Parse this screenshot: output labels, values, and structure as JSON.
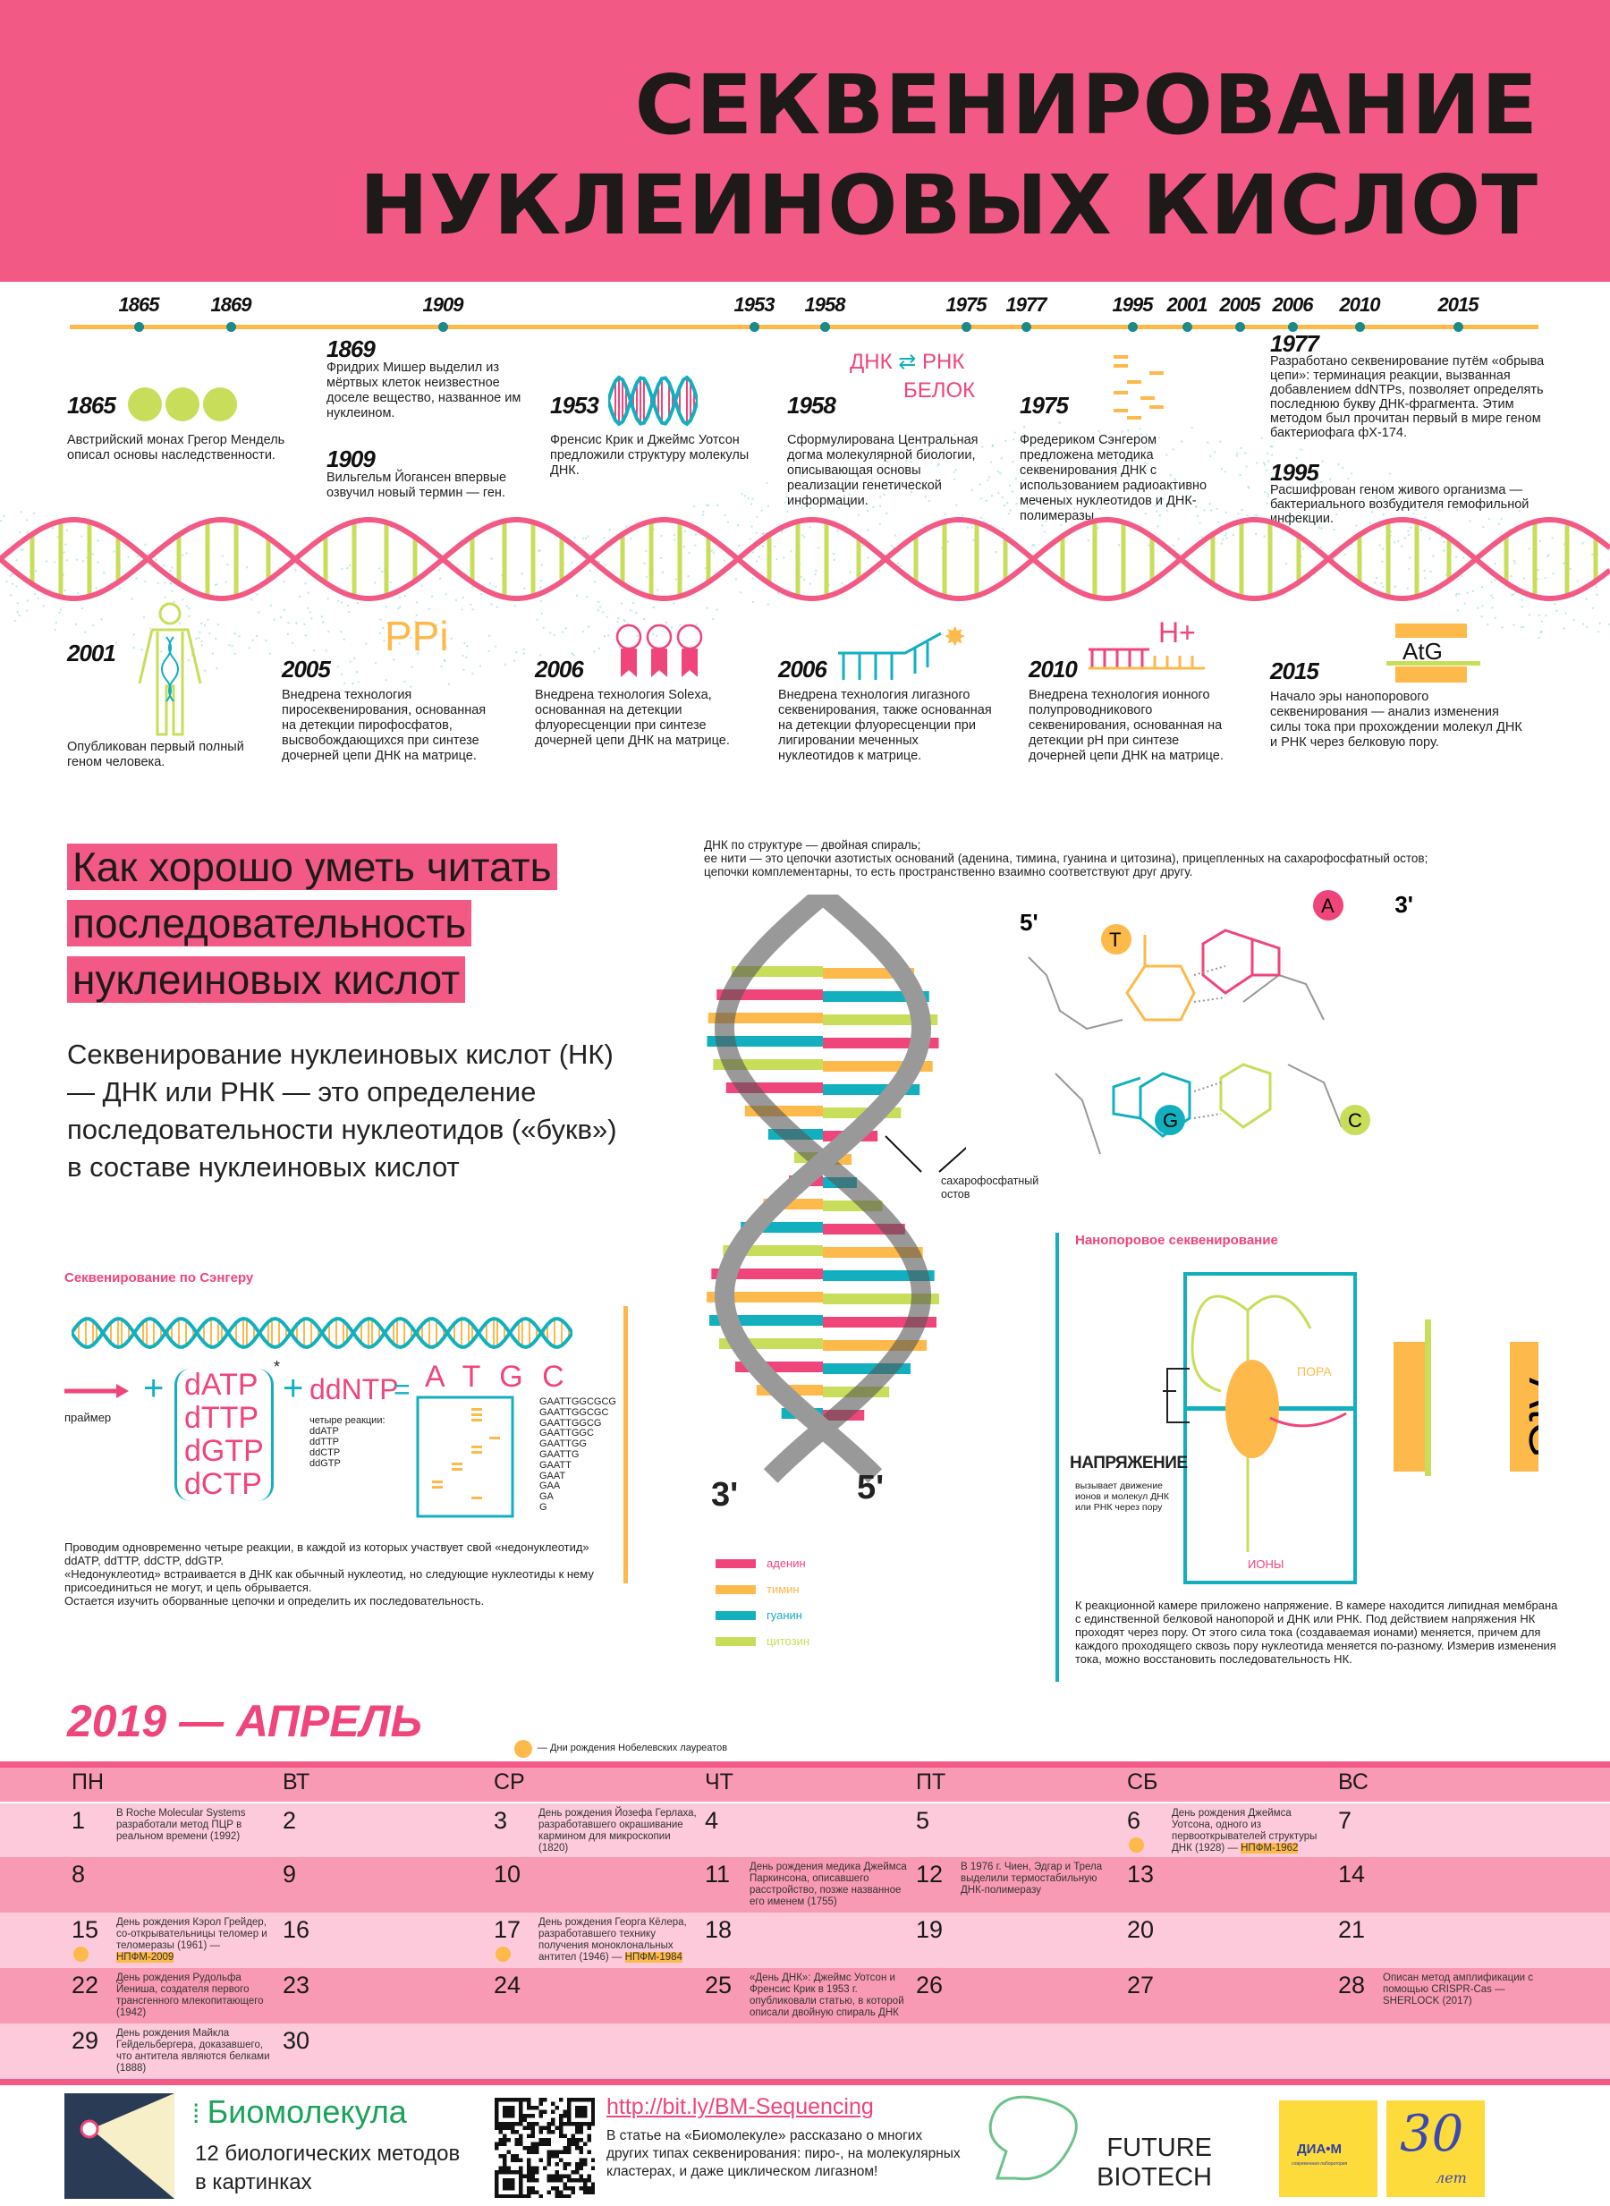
{
  "header": {
    "title_line1": "СЕКВЕНИРОВАНИЕ",
    "title_line2": "НУКЛЕИНОВЫХ КИСЛОТ",
    "bg": "#f25a85"
  },
  "timeline": {
    "years": [
      "1865",
      "1869",
      "1909",
      "1953",
      "1958",
      "1975",
      "1977",
      "1995",
      "2001",
      "2005",
      "2006",
      "2010",
      "2015"
    ],
    "events_top": [
      {
        "year": "1865",
        "text": "Австрийский монах Грегор Мендель описал основы наследственности."
      },
      {
        "year": "1869",
        "text": "Фридрих Мишер выделил из мёртвых клеток неизвестное доселе вещество, названное им нуклеином."
      },
      {
        "year": "1909",
        "text": "Вильгельм Йогансен впервые озвучил новый термин — ген."
      },
      {
        "year": "1953",
        "text": "Френсис Крик и Джеймс Уотсон предложили структуру молекулы ДНК."
      },
      {
        "year": "1958",
        "text": "Сформулирована Центральная догма молекулярной биологии, описывающая основы реализации генетической информации."
      },
      {
        "year": "1975",
        "text": "Фредериком Сэнгером предложена методика секвенирования ДНК с использованием радиоактивно меченых нуклеотидов и ДНК-полимеразы."
      },
      {
        "year": "1977",
        "text": "Разработано секвенирование путём «обрыва цепи»: терминация реакции, вызванная добавлением ddNTPs, позволяет определять последнюю букву ДНК-фрагмента. Этим методом был прочитан первый в мире геном бактериофага фX-174."
      },
      {
        "year": "1995",
        "text": "Расшифрован геном живого организма — бактериального возбудителя гемофильной инфекции."
      }
    ],
    "events_bottom": [
      {
        "year": "2001",
        "text": "Опубликован первый полный геном человека."
      },
      {
        "year": "2005",
        "text": "Внедрена технология пиросеквенирования, основанная на детекции пирофосфатов, высвобождающихся при синтезе дочерней цепи ДНК на матрице."
      },
      {
        "year": "2006",
        "text": "Внедрена технология Solexa, основанная на детекции флуоресценции при синтезе дочерней цепи ДНК на матрице."
      },
      {
        "year": "2006",
        "text": "Внедрена технология лигазного секвенирования, также основанная на детекции флуоресценции при лигировании меченных нуклеотидов к матрице."
      },
      {
        "year": "2010",
        "text": "Внедрена технология ионного полупроводникового секвенирования, основанная на детекции pH при синтезе дочерней цепи ДНК на матрице."
      },
      {
        "year": "2015",
        "text": "Начало эры нанопорового секвенирования — анализ изменения силы тока при прохождении молекул ДНК и РНК через белковую пору."
      }
    ],
    "dogma": {
      "dna": "ДНК",
      "rna": "РНК",
      "protein": "БЕЛОК"
    },
    "ppi": "PPi",
    "hplus": "H+",
    "atg": "AtG"
  },
  "section": {
    "heading": "Как хорошо уметь читать последовательность нуклеиновых кислот",
    "intro": "Секвенирование нуклеиновых кислот (НК) — ДНК или РНК — это определение последовательности нуклеотидов («букв») в составе нуклеиновых кислот"
  },
  "structure": {
    "desc": [
      "ДНК по структуре — двойная спираль;",
      "ее нити — это цепочки азотистых оснований (аденина, тимина, гуанина и цитозина), прицепленных на сахарофосфатный остов;",
      "цепочки комплементарны, то есть пространственно взаимно соответствуют друг другу."
    ],
    "backbone_label": "сахарофосфатный остов",
    "end3": "3'",
    "end5": "5'",
    "bases": [
      "T",
      "A",
      "G",
      "C"
    ],
    "legend": [
      {
        "label": "аденин",
        "color": "#f0457a"
      },
      {
        "label": "тимин",
        "color": "#fdb94a"
      },
      {
        "label": "гуанин",
        "color": "#12b0bf"
      },
      {
        "label": "цитозин",
        "color": "#c8de5a"
      }
    ]
  },
  "sanger": {
    "title": "Секвенирование по Сэнгеру",
    "primer": "праймер",
    "dntps": [
      "dATP",
      "dTTP",
      "dGTP",
      "dCTP"
    ],
    "star": "*",
    "ddntp": "ddNTP",
    "four_label": "четыре реакции:",
    "ddlist": [
      "ddATP",
      "ddTTP",
      "ddCTP",
      "ddGTP"
    ],
    "gel_header": "A T G C",
    "fragments": [
      "GAATTGGCGCG",
      "GAATTGGCGC",
      "GAATTGGCG",
      "GAATTGGC",
      "GAATTGG",
      "GAATTG",
      "GAATT",
      "GAAT",
      "GAA",
      "GA",
      "G"
    ],
    "text": [
      "Проводим одновременно четыре реакции, в каждой из которых участвует свой «недонуклеотид» ddATP, ddTTP, ddCTP, ddGTP.",
      "«Недонуклеотид» встраивается в ДНК как обычный нуклеотид, но следующие нуклеотиды к нему присоединиться не могут, и цепь обрывается.",
      "Остается изучить оборванные цепочки и определить их последовательность."
    ]
  },
  "nanopore": {
    "title": "Нанопоровое секвенирование",
    "voltage": "НАПРЯЖЕНИЕ",
    "voltage_desc": "вызывает движение ионов и молекул ДНК или РНК через пору",
    "pore": "ПОРА",
    "ions": "ИОНЫ",
    "atg": "AtG",
    "text": "К реакционной камере приложено напряжение. В камере находится липидная мембрана с единственной белковой нанопорой и ДНК или РНК. Под действием напряжения НК проходят через пору. От этого сила тока (создаваемая ионами) меняется, причем для каждого проходящего сквозь пору нуклеотида меняется по-разному. Измерив изменения тока, можно восстановить последовательность НК."
  },
  "calendar": {
    "title": "2019 — АПРЕЛЬ",
    "legend": "— Дни рождения Нобелевских лауреатов",
    "weekdays": [
      "ПН",
      "ВТ",
      "СР",
      "ЧТ",
      "ПТ",
      "СБ",
      "ВС"
    ],
    "days": [
      {
        "d": "1",
        "note": "В Roche Molecular Systems разработали метод ПЦР в реальном времени (1992)"
      },
      {
        "d": "2"
      },
      {
        "d": "3",
        "note": "День рождения Йозефа Герлаха, разработавшего окрашивание кармином для микроскопии (1820)"
      },
      {
        "d": "4"
      },
      {
        "d": "5"
      },
      {
        "d": "6",
        "note": "День рождения Джеймса Уотсона, одного из первооткрывателей структуры ДНК (1928) — ",
        "prize": "НПФМ-1962",
        "nobel": true
      },
      {
        "d": "7"
      },
      {
        "d": "8"
      },
      {
        "d": "9"
      },
      {
        "d": "10"
      },
      {
        "d": "11",
        "note": "День рождения медика Джеймса Паркинсона, описавшего расстройство, позже названное его именем (1755)"
      },
      {
        "d": "12",
        "note": "В 1976 г. Чиен, Эдгар и Трела выделили термостабильную ДНК-полимеразу"
      },
      {
        "d": "13"
      },
      {
        "d": "14"
      },
      {
        "d": "15",
        "note": "День рождения Кэрол Грейдер, со-открывательницы теломер и теломеразы (1961) — ",
        "prize": "НПФМ-2009",
        "nobel": true
      },
      {
        "d": "16"
      },
      {
        "d": "17",
        "note": "День рождения Георга Кёлера, разработавшего технику получения моноклональных антител (1946) — ",
        "prize": "НПФМ-1984",
        "nobel": true
      },
      {
        "d": "18"
      },
      {
        "d": "19"
      },
      {
        "d": "20"
      },
      {
        "d": "21"
      },
      {
        "d": "22",
        "note": "День рождения Рудольфа Йениша, создателя первого трансгенного млекопитающего (1942)"
      },
      {
        "d": "23"
      },
      {
        "d": "24"
      },
      {
        "d": "25",
        "note": "«День ДНК»: Джеймс Уотсон и Френсис Крик в 1953 г. опубликовали статью, в которой описали двойную спираль ДНК"
      },
      {
        "d": "26"
      },
      {
        "d": "27"
      },
      {
        "d": "28",
        "note": "Описан метод амплификации с помощью CRISPR-Cas — SHERLOCK (2017)"
      },
      {
        "d": "29",
        "note": "День рождения Майкла Гейдельбергера, доказавшего, что антитела являются белками (1888)"
      },
      {
        "d": "30"
      }
    ]
  },
  "footer": {
    "brand": "Биомолекула",
    "subtitle": "12 биологических методов в картинках",
    "link": "http://bit.ly/BM-Sequencing",
    "link_text": "В статье на «Биомолекуле» рассказано о многих других типах секвенирования: пиро-, на молекулярных кластерах, и даже циклическом лигазном!",
    "partner1": "FUTURE BIOTECH",
    "partner2": "ДИА•М",
    "partner2_sub": "современная лаборатория",
    "anniv": "30",
    "anniv_sub": "лет"
  },
  "colors": {
    "pink": "#f25a85",
    "orange": "#fdb94a",
    "teal": "#12b0bf",
    "green": "#c8de5a",
    "row_light": "#fccadb",
    "row_dark": "#f99ab5"
  }
}
